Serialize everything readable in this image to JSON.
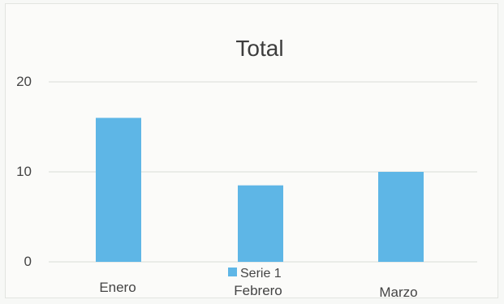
{
  "chart_data": {
    "type": "bar",
    "title": "Total",
    "categories": [
      "Enero",
      "Febrero",
      "Marzo"
    ],
    "series": [
      {
        "name": "Serie 1",
        "values": [
          16,
          8.5,
          10
        ],
        "color": "#5eb6e6"
      }
    ],
    "y_ticks": [
      "0",
      "10",
      "20"
    ],
    "ylim": [
      0,
      20
    ],
    "grid": true,
    "legend": "bottom"
  }
}
